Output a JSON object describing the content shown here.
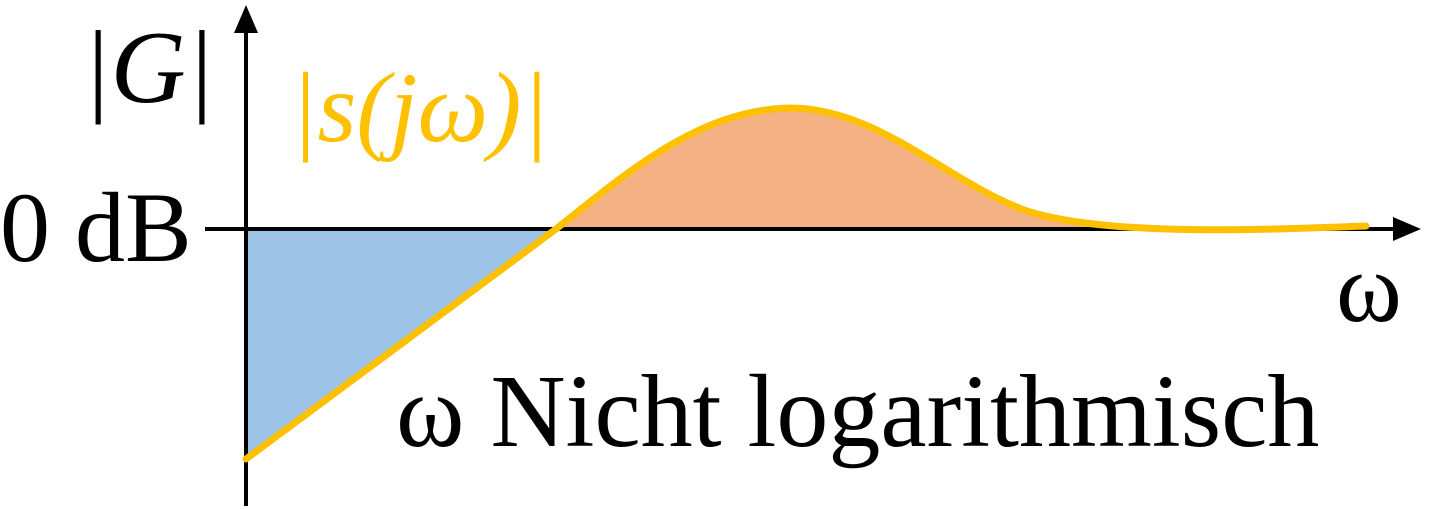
{
  "labels": {
    "y_axis": "|G|",
    "curve": "|s(jω)|",
    "zero_level": "0 dB",
    "x_axis": "ω",
    "note": "ω Nicht logarithmisch"
  },
  "colors": {
    "curve": "#FFC000",
    "negative_area": "#9DC3E6",
    "positive_area": "#F4B183",
    "axis": "#000000",
    "text": "#000000"
  }
}
